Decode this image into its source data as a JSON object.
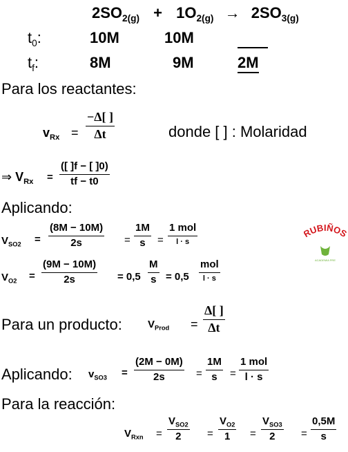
{
  "reaction": {
    "r1": "2SO",
    "r1_sub": "2(g)",
    "plus": "+",
    "r2": "1O",
    "r2_sub": "2(g)",
    "arrow": "→",
    "p1": "2SO",
    "p1_sub": "3(g)"
  },
  "t0": {
    "label": "t",
    "sub": "0",
    "colon": ":",
    "so2": "10M",
    "o2": "10M",
    "so3": ""
  },
  "tf": {
    "label": "t",
    "sub": "f",
    "colon": ":",
    "so2": "8M",
    "o2": "9M",
    "so3": "2M"
  },
  "reactants_heading": "Para los reactantes:",
  "vrx_def": {
    "lhs": "v",
    "lhs_sub": "Rx",
    "eq": "=",
    "num": "−Δ[ ]",
    "den": "Δt",
    "where": "donde [   ] : Molaridad"
  },
  "implies": {
    "arrow": "⇒",
    "lhs": "V",
    "lhs_sub": "Rx",
    "eq": "=",
    "num": "([   ]f − [    ]0)",
    "den": "tf − t0"
  },
  "applying1": "Aplicando:",
  "vso2": {
    "lhs": "V",
    "lhs_sub": "SO2",
    "eq": "=",
    "f1_num": "(8M − 10M)",
    "f1_den": "2s",
    "eq2": "=",
    "f2_num": "1M",
    "f2_den": "s",
    "eq3": "=",
    "f3_num": "1  mol",
    "f3_den": "l · s"
  },
  "vo2": {
    "lhs": "V",
    "lhs_sub": "O2",
    "eq": "=",
    "f1_num": "(9M − 10M)",
    "f1_den": "2s",
    "eq2": "= 0,5",
    "f2_num": "M",
    "f2_den": "s",
    "eq3": "= 0,5",
    "f3_num": "mol",
    "f3_den": "l · s"
  },
  "product": {
    "text": "Para un  producto:",
    "lhs": "V",
    "lhs_sub": "Prod",
    "eq": "=",
    "num": "Δ[ ]",
    "den": "Δt"
  },
  "vso3": {
    "text": "Aplicando:",
    "lhs": "v",
    "lhs_sub": "SO3",
    "eq": "=",
    "f1_num": "(2M − 0M)",
    "f1_den": "2s",
    "eq2": "=",
    "f2_num": "1M",
    "f2_den": "s",
    "eq3": "=",
    "f3_num": "1  mol",
    "f3_den": "l · s"
  },
  "reaction_heading": "Para la reacción:",
  "vrxn": {
    "lhs": "V",
    "lhs_sub": "Rxn",
    "eq": "=",
    "f1_num": "VSO2",
    "f1_den": "2",
    "f2_num": "VO2",
    "f2_den": "1",
    "f3_num": "VSO3",
    "f3_den": "2",
    "f4_num": "0,5M",
    "f4_den": "s"
  },
  "logo": {
    "text": "RUBIÑOS",
    "tagline": "ACADEMIA PRE",
    "color": "#d4161c",
    "accent": "#6fb33b"
  }
}
